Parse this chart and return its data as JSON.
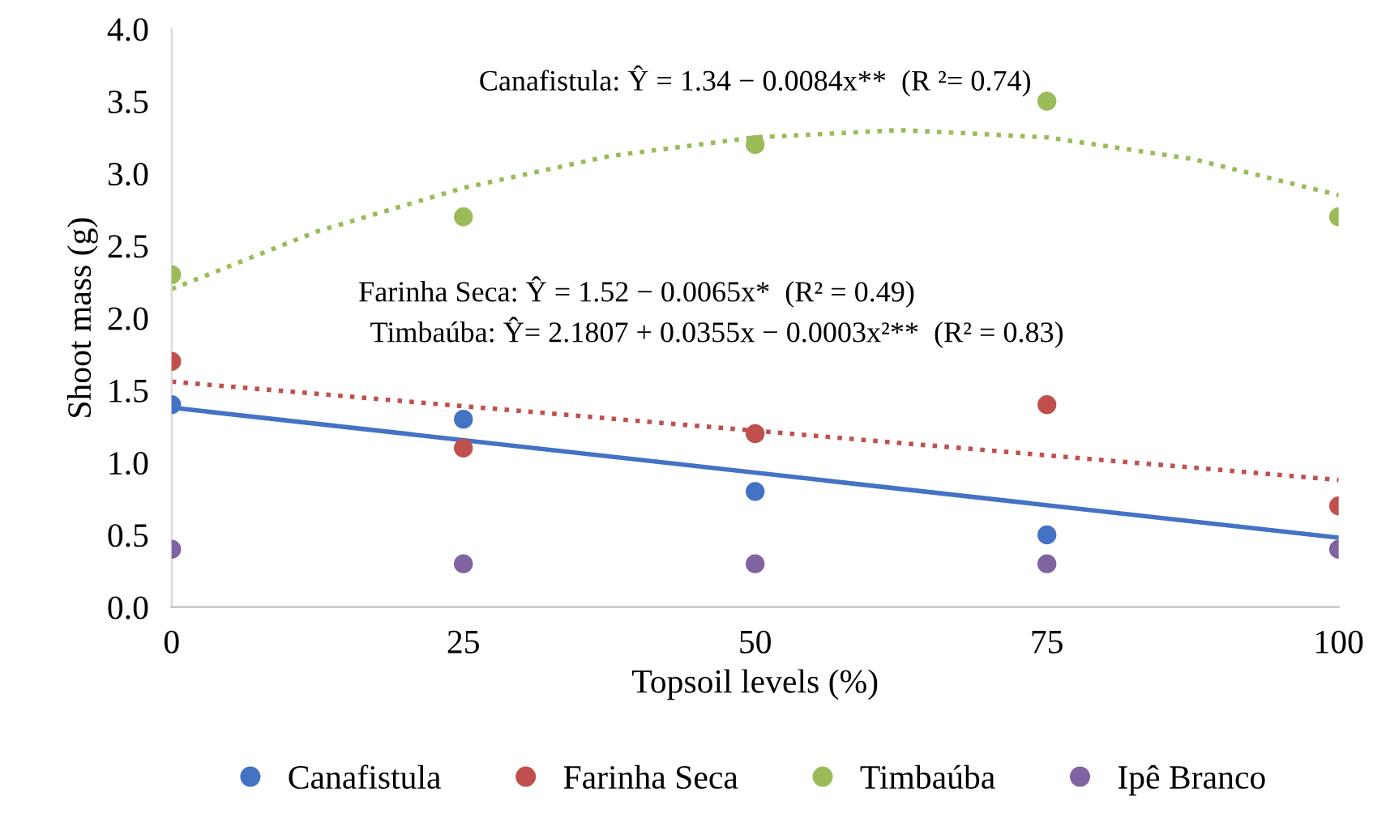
{
  "chart_data": {
    "type": "scatter",
    "xlabel": "Topsoil levels (%)",
    "ylabel": "Shoot mass (g)",
    "x": [
      0,
      25,
      50,
      75,
      100
    ],
    "series": [
      {
        "name": "Canafistula",
        "color": "#4472c4",
        "values": [
          1.4,
          1.3,
          0.8,
          0.5,
          null
        ]
      },
      {
        "name": "Farinha Seca",
        "color": "#c0504d",
        "values": [
          1.7,
          1.1,
          1.2,
          1.4,
          0.7
        ]
      },
      {
        "name": "Timbaúba",
        "color": "#9bbb59",
        "values": [
          2.3,
          2.7,
          3.2,
          3.5,
          2.7
        ]
      },
      {
        "name": "Ipê Branco",
        "color": "#8064a2",
        "values": [
          0.4,
          0.3,
          0.3,
          0.3,
          0.4
        ]
      },
      {
        "type": "line",
        "marker": "none",
        "color": "#4472c4",
        "line_style": "solid",
        "x": [
          0,
          100
        ],
        "values": [
          1.38,
          0.48
        ]
      },
      {
        "type": "line",
        "marker": "none",
        "color": "#c0504d",
        "line_style": "dotted",
        "x": [
          0,
          100
        ],
        "values": [
          1.56,
          0.88
        ]
      },
      {
        "type": "line",
        "marker": "none",
        "color": "#9bbb59",
        "line_style": "dotted",
        "x": [
          0,
          12.5,
          25,
          37.5,
          50,
          62.5,
          75,
          87.5,
          100
        ],
        "values": [
          2.2,
          2.6,
          2.9,
          3.12,
          3.25,
          3.3,
          3.25,
          3.1,
          2.85
        ]
      }
    ],
    "annotations": [
      "Canafistula: Ŷ = 1.34 − 0.0084x**  (R ²= 0.74)",
      "Farinha Seca: Ŷ = 1.52 − 0.0065x*  (R² = 0.49)",
      "Timbaúba: Ŷ= 2.1807 + 0.0355x − 0.0003x²**  (R² = 0.83)"
    ],
    "xlim": [
      0,
      100
    ],
    "xticks": [
      0,
      25,
      50,
      75,
      100
    ],
    "ylim": [
      0,
      4
    ],
    "yticks": [
      {
        "value": 0,
        "label": "0.0"
      },
      {
        "value": 0.5,
        "label": "0.5"
      },
      {
        "value": 1,
        "label": "1.0"
      },
      {
        "value": 1.5,
        "label": "1.5"
      },
      {
        "value": 2,
        "label": "2.0"
      },
      {
        "value": 2.5,
        "label": "2.5"
      },
      {
        "value": 3,
        "label": "3.0"
      },
      {
        "value": 3.5,
        "label": "3.5"
      },
      {
        "value": 4,
        "label": "4.0"
      }
    ],
    "grid": false,
    "legend": "bottom",
    "marker": "circle"
  }
}
